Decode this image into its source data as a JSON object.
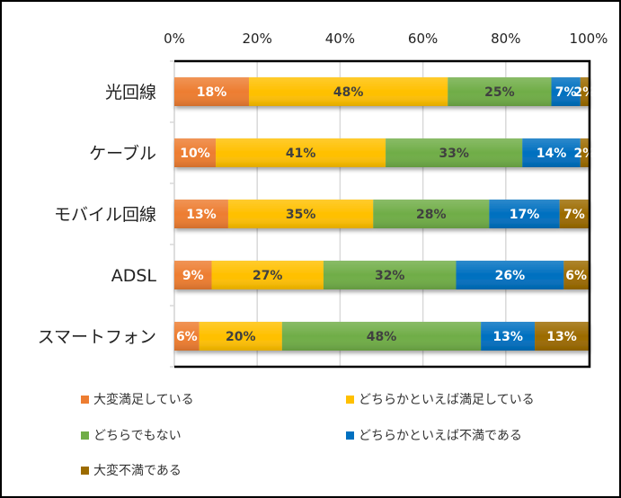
{
  "chart_data": {
    "type": "bar",
    "orientation": "horizontal",
    "stacked": "percent",
    "title": "",
    "xlabel": "",
    "ylabel": "",
    "xlim": [
      0,
      100
    ],
    "x_ticks": [
      "0%",
      "20%",
      "40%",
      "60%",
      "80%",
      "100%"
    ],
    "x_tick_values": [
      0,
      20,
      40,
      60,
      80,
      100
    ],
    "x_axis_position": "top",
    "grid": true,
    "legend_position": "bottom",
    "categories": [
      "光回線",
      "ケーブル",
      "モバイル回線",
      "ADSL",
      "スマートフォン"
    ],
    "series": [
      {
        "name": "大変満足している",
        "color": "#ED7D31",
        "label_color": "#ffffff",
        "values": [
          18,
          10,
          13,
          9,
          6
        ]
      },
      {
        "name": "どちらかといえば満足している",
        "color": "#FFC000",
        "label_color": "#404040",
        "values": [
          48,
          41,
          35,
          27,
          20
        ]
      },
      {
        "name": "どちらでもない",
        "color": "#70AD47",
        "label_color": "#404040",
        "values": [
          25,
          33,
          28,
          32,
          48
        ]
      },
      {
        "name": "どちらかといえば不満である",
        "color": "#0070C0",
        "label_color": "#ffffff",
        "values": [
          7,
          14,
          17,
          26,
          13
        ]
      },
      {
        "name": "大変不満である",
        "color": "#9C6B00",
        "label_color": "#ffffff",
        "values": [
          2,
          2,
          7,
          6,
          13
        ]
      }
    ],
    "value_suffix": "%"
  }
}
